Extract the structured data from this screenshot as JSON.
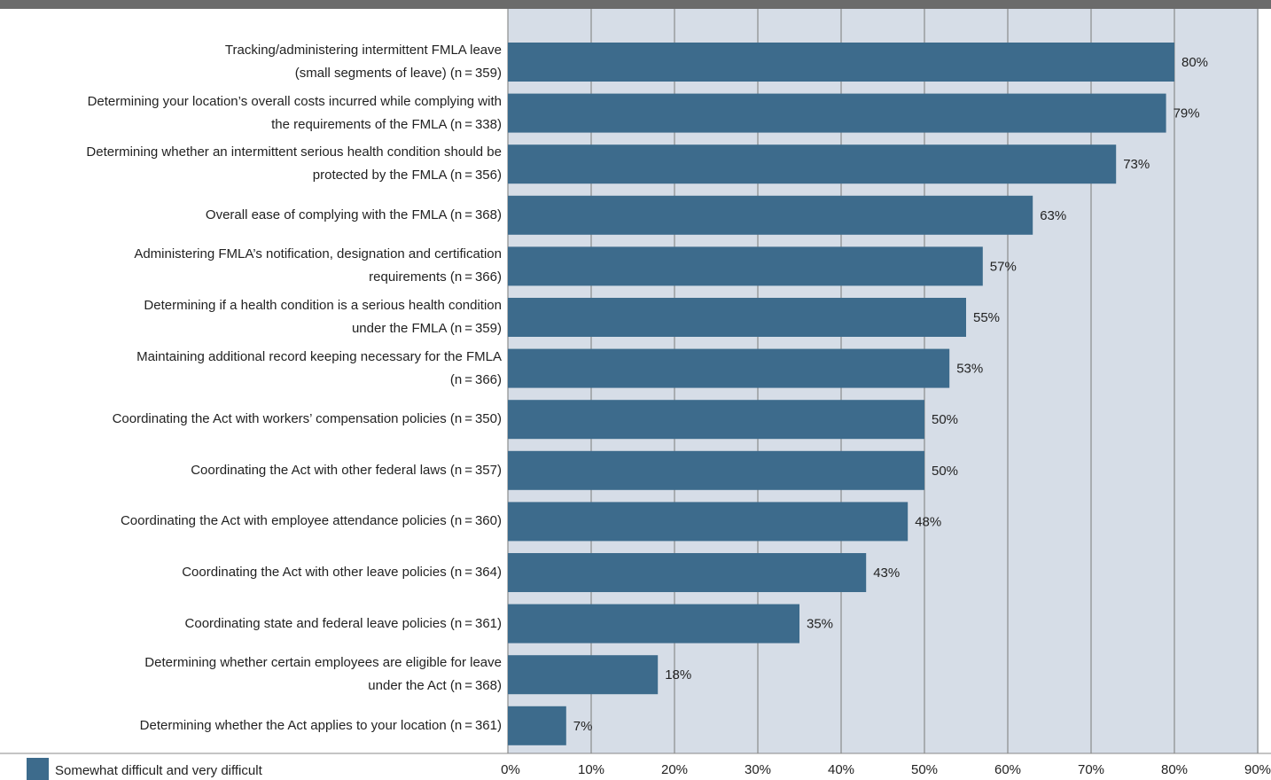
{
  "chart_data": {
    "type": "hbar",
    "categories": [
      "Tracking/administering intermittent FMLA leave\n(small segments of leave) (n = 359)",
      "Determining your location’s overall costs incurred while complying with\nthe requirements of the FMLA (n = 338)",
      "Determining whether an intermittent serious health condition should be\nprotected by the FMLA (n = 356)",
      "Overall ease of complying with the FMLA (n = 368)",
      "Administering FMLA’s notification, designation and certification\nrequirements (n = 366)",
      "Determining if a health condition is a serious health condition\nunder the FMLA (n = 359)",
      "Maintaining additional record keeping necessary for the FMLA\n(n = 366)",
      "Coordinating the Act with workers’ compensation policies (n = 350)",
      "Coordinating the Act with other federal laws (n = 357)",
      "Coordinating the Act with employee attendance policies (n = 360)",
      "Coordinating the Act with other leave policies (n = 364)",
      "Coordinating state and federal leave policies (n = 361)",
      "Determining whether certain employees are eligible for leave\nunder the Act (n = 368)",
      "Determining whether the Act applies to your location (n = 361)"
    ],
    "series": [
      {
        "name": "Somewhat difficult and very difficult",
        "color": "#3d6b8c",
        "values": [
          80,
          79,
          73,
          63,
          57,
          55,
          53,
          50,
          50,
          48,
          43,
          35,
          18,
          7
        ],
        "value_labels": [
          "80%",
          "79%",
          "73%",
          "63%",
          "57%",
          "55%",
          "53%",
          "50%",
          "50%",
          "48%",
          "43%",
          "35%",
          "18%",
          "7%"
        ]
      }
    ],
    "xlim": [
      0,
      90
    ],
    "xticks": [
      {
        "value": 0,
        "label": "0%"
      },
      {
        "value": 10,
        "label": "10%"
      },
      {
        "value": 20,
        "label": "20%"
      },
      {
        "value": 30,
        "label": "30%"
      },
      {
        "value": 40,
        "label": "40%"
      },
      {
        "value": 50,
        "label": "50%"
      },
      {
        "value": 60,
        "label": "60%"
      },
      {
        "value": 70,
        "label": "70%"
      },
      {
        "value": 80,
        "label": "80%"
      },
      {
        "value": 90,
        "label": "90%"
      }
    ],
    "grid": true
  }
}
